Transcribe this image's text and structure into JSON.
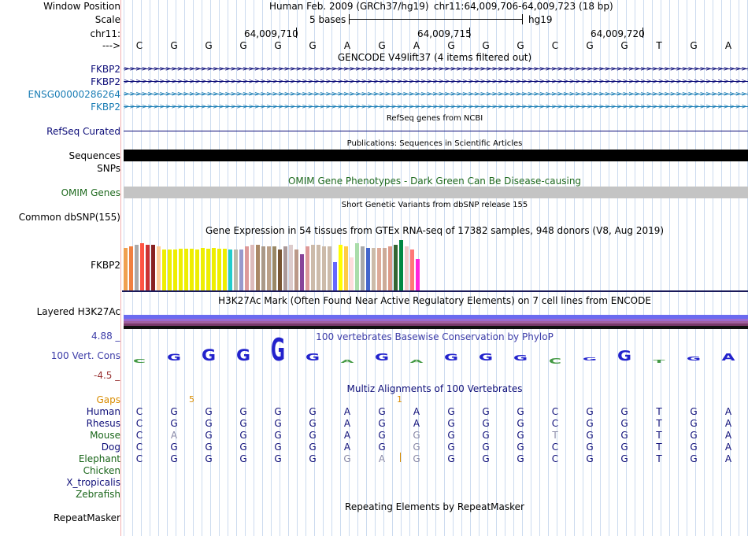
{
  "header": {
    "window_position_label": "Window Position",
    "scale_label": "Scale",
    "chrom_label": "chr11:",
    "arrow_label": "--->",
    "assembly_text": "Human Feb. 2009 (GRCh37/hg19)",
    "position_text": "chr11:64,009,706-64,009,723 (18 bp)",
    "scale_text": "5 bases",
    "db_text": "hg19",
    "coords": [
      "64,009,710",
      "64,009,715",
      "64,009,720"
    ]
  },
  "sequence": [
    "C",
    "G",
    "G",
    "G",
    "G",
    "G",
    "A",
    "G",
    "A",
    "G",
    "G",
    "G",
    "C",
    "G",
    "G",
    "T",
    "G",
    "A"
  ],
  "gencode": {
    "title": "GENCODE V49lift37 (4 items filtered out)",
    "items": [
      {
        "label": "FKBP2",
        "color": "#0c0c78"
      },
      {
        "label": "FKBP2",
        "color": "#0c0c78"
      },
      {
        "label": "ENSG00000286264",
        "color": "#1a7db5"
      },
      {
        "label": "FKBP2",
        "color": "#1a7db5"
      }
    ]
  },
  "refseq": {
    "label": "RefSeq Curated",
    "title": "RefSeq genes from NCBI"
  },
  "publications": {
    "label": "Sequences",
    "title": "Publications: Sequences in Scientific Articles"
  },
  "snps": {
    "label": "SNPs"
  },
  "omim": {
    "label": "OMIM Genes",
    "title": "OMIM Gene Phenotypes - Dark Green Can Be Disease-causing"
  },
  "dbsnp": {
    "label": "Common dbSNP(155)",
    "title": "Short Genetic Variants from dbSNP release 155"
  },
  "gtex": {
    "label": "FKBP2",
    "title": "Gene Expression in 54 tissues from GTEx RNA-seq of 17382 samples, 948 donors (V8, Aug 2019)",
    "bars": [
      {
        "h": 54,
        "c": "#f0a050"
      },
      {
        "h": 56,
        "c": "#f08040"
      },
      {
        "h": 58,
        "c": "#aaaaaa"
      },
      {
        "h": 60,
        "c": "#ff5544"
      },
      {
        "h": 58,
        "c": "#cc3333"
      },
      {
        "h": 58,
        "c": "#882222"
      },
      {
        "h": 56,
        "c": "#ffcc99"
      },
      {
        "h": 52,
        "c": "#eeee00"
      },
      {
        "h": 52,
        "c": "#eeee00"
      },
      {
        "h": 52,
        "c": "#eeee00"
      },
      {
        "h": 53,
        "c": "#eeee00"
      },
      {
        "h": 53,
        "c": "#eeee00"
      },
      {
        "h": 53,
        "c": "#eeee00"
      },
      {
        "h": 52,
        "c": "#eeee00"
      },
      {
        "h": 54,
        "c": "#eeee00"
      },
      {
        "h": 53,
        "c": "#eeee00"
      },
      {
        "h": 54,
        "c": "#eeee00"
      },
      {
        "h": 53,
        "c": "#eeee00"
      },
      {
        "h": 53,
        "c": "#eeee00"
      },
      {
        "h": 52,
        "c": "#22cccc"
      },
      {
        "h": 52,
        "c": "#bbbbaa"
      },
      {
        "h": 52,
        "c": "#9999cc"
      },
      {
        "h": 56,
        "c": "#dd9999"
      },
      {
        "h": 58,
        "c": "#ddbbbb"
      },
      {
        "h": 58,
        "c": "#aa8866"
      },
      {
        "h": 56,
        "c": "#aa9988"
      },
      {
        "h": 56,
        "c": "#bba088"
      },
      {
        "h": 56,
        "c": "#998866"
      },
      {
        "h": 52,
        "c": "#775533"
      },
      {
        "h": 56,
        "c": "#aa9999"
      },
      {
        "h": 58,
        "c": "#ddcccc"
      },
      {
        "h": 52,
        "c": "#bb9988"
      },
      {
        "h": 46,
        "c": "#884499"
      },
      {
        "h": 56,
        "c": "#dd9999"
      },
      {
        "h": 58,
        "c": "#ccbbaa"
      },
      {
        "h": 58,
        "c": "#ccbbaa"
      },
      {
        "h": 56,
        "c": "#ccbbaa"
      },
      {
        "h": 56,
        "c": "#ccbbaa"
      },
      {
        "h": 36,
        "c": "#6666ff"
      },
      {
        "h": 58,
        "c": "#ffff00"
      },
      {
        "h": 56,
        "c": "#ffcc44"
      },
      {
        "h": 42,
        "c": "#ffdddd"
      },
      {
        "h": 60,
        "c": "#aaddaa"
      },
      {
        "h": 56,
        "c": "#aaaaaa"
      },
      {
        "h": 54,
        "c": "#4466cc"
      },
      {
        "h": 54,
        "c": "#ccbbaa"
      },
      {
        "h": 54,
        "c": "#ddaa99"
      },
      {
        "h": 54,
        "c": "#ccaa99"
      },
      {
        "h": 56,
        "c": "#dd9988"
      },
      {
        "h": 58,
        "c": "#336633"
      },
      {
        "h": 64,
        "c": "#008844"
      },
      {
        "h": 56,
        "c": "#eecccc"
      },
      {
        "h": 52,
        "c": "#ff7777"
      },
      {
        "h": 40,
        "c": "#ff22dd"
      }
    ]
  },
  "h3k27ac": {
    "label": "Layered H3K27Ac",
    "title": "H3K27Ac Mark (Often Found Near Active Regulatory Elements) on 7 cell lines from ENCODE"
  },
  "phylop": {
    "label": "100 Vert. Cons",
    "max_label": "4.88 _",
    "min_label": "-4.5 _",
    "title": "100 vertebrates Basewise Conservation by PhyloP",
    "scores": [
      -0.6,
      0.9,
      1.6,
      1.6,
      3.2,
      1.0,
      -0.2,
      1.0,
      -0.2,
      0.9,
      1.0,
      0.8,
      -0.9,
      0.2,
      1.4,
      -0.2,
      0.6,
      1.0
    ]
  },
  "multiz": {
    "title": "Multiz Alignments of 100 Vertebrates",
    "gaps_label": "Gaps",
    "gap_marks": [
      "5",
      "1"
    ],
    "species": [
      {
        "name": "Human",
        "bases": [
          "C",
          "G",
          "G",
          "G",
          "G",
          "G",
          "A",
          "G",
          "A",
          "G",
          "G",
          "G",
          "C",
          "G",
          "G",
          "T",
          "G",
          "A"
        ]
      },
      {
        "name": "Rhesus",
        "bases": [
          "C",
          "G",
          "G",
          "G",
          "G",
          "G",
          "A",
          "G",
          "A",
          "G",
          "G",
          "G",
          "C",
          "G",
          "G",
          "T",
          "G",
          "A"
        ]
      },
      {
        "name": "Mouse",
        "bases": [
          "C",
          "A",
          "G",
          "G",
          "G",
          "G",
          "A",
          "G",
          "G",
          "G",
          "G",
          "G",
          "T",
          "G",
          "G",
          "T",
          "G",
          "A"
        ]
      },
      {
        "name": "Dog",
        "bases": [
          "C",
          "G",
          "G",
          "G",
          "G",
          "G",
          "A",
          "G",
          "G",
          "G",
          "G",
          "G",
          "C",
          "G",
          "G",
          "T",
          "G",
          "A"
        ]
      },
      {
        "name": "Elephant",
        "bases": [
          "C",
          "G",
          "G",
          "G",
          "G",
          "G",
          "G",
          "A",
          "G",
          "G",
          "G",
          "G",
          "C",
          "G",
          "G",
          "T",
          "G",
          "A"
        ]
      },
      {
        "name": "Chicken",
        "bases": []
      },
      {
        "name": "X_tropicalis",
        "bases": []
      },
      {
        "name": "Zebrafish",
        "bases": []
      }
    ],
    "mismatch_color": "#8a8aa8"
  },
  "repeatmasker": {
    "label": "RepeatMasker",
    "title": "Repeating Elements by RepeatMasker"
  },
  "colors": {
    "navy": "#0c0c78",
    "gencode_blue": "#1a7db5",
    "omim_green": "#1f6a1f",
    "gaps_orange": "#d98c00",
    "phylop_blue": "#3c3ca8",
    "phylop_red": "#993333",
    "species_navy": "#10107a",
    "species_green": "#1a661a"
  }
}
